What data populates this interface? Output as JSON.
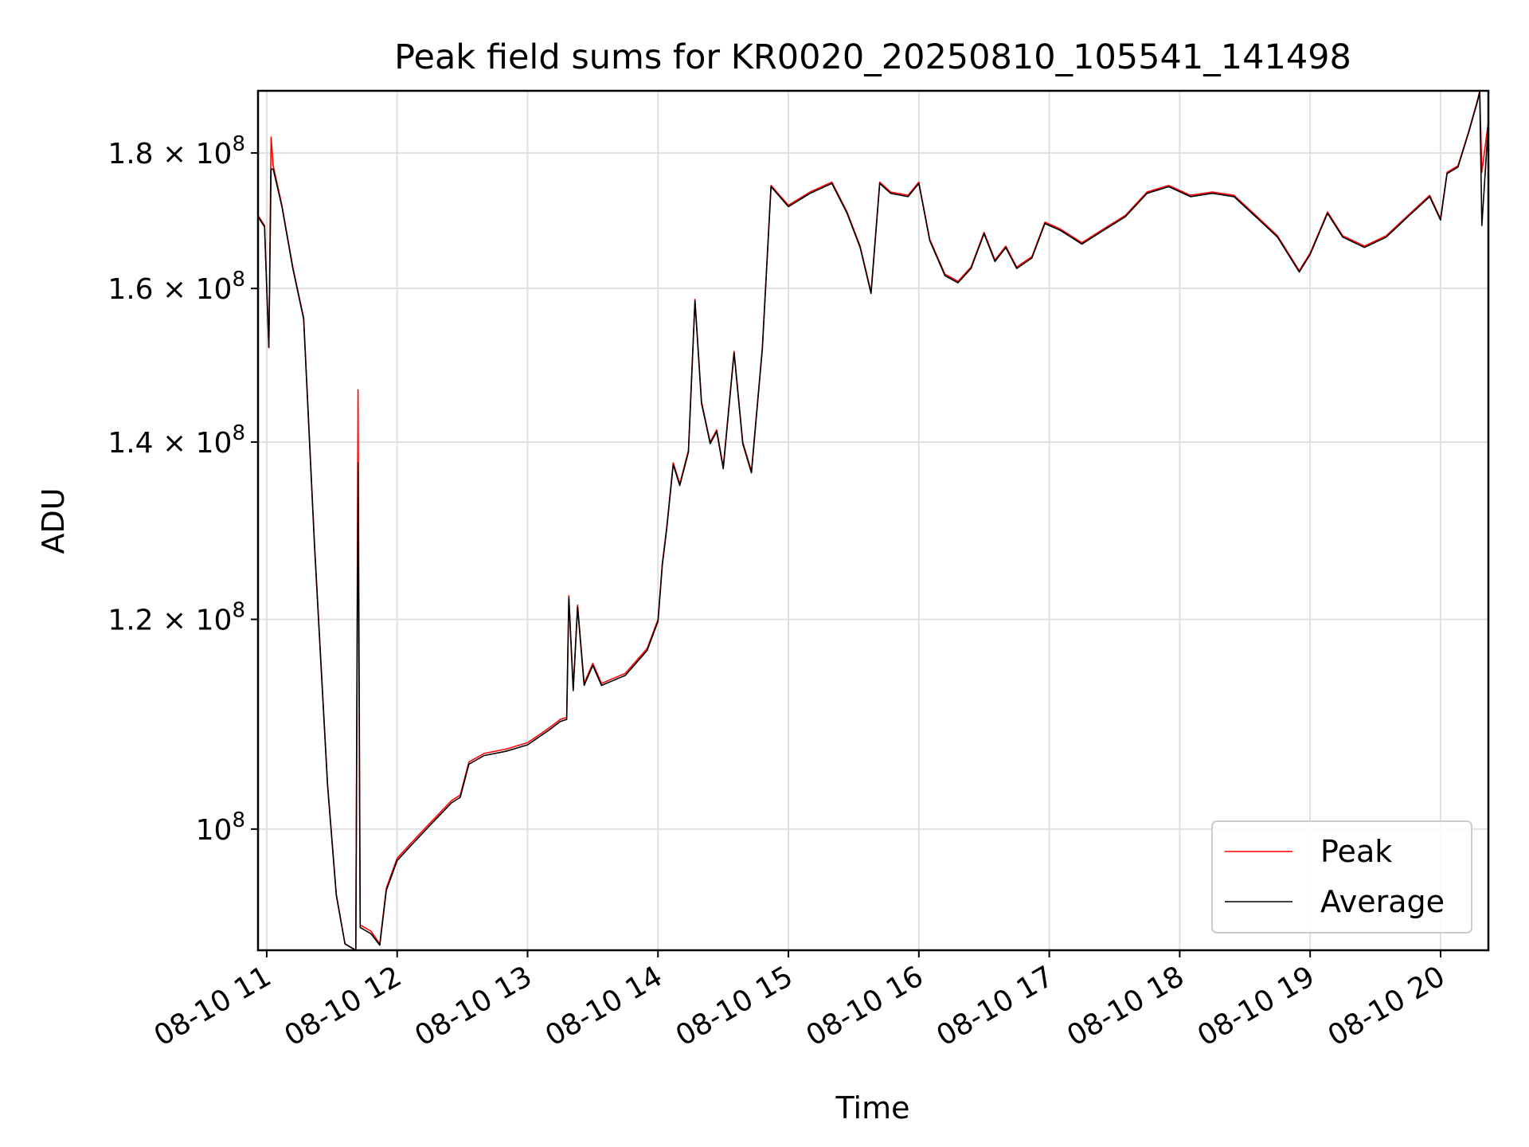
{
  "chart_data": {
    "type": "line",
    "title": "Peak field sums for KR0020_20250810_105541_141498",
    "xlabel": "Time",
    "ylabel": "ADU",
    "x_unit": "hours",
    "xlim": [
      "2025-08-10 10:56",
      "2025-08-10 20:22"
    ],
    "ylim": [
      90000000,
      190000000
    ],
    "yscale": "log",
    "grid": true,
    "legend": "lower right",
    "x_ticks": [
      {
        "value": "2025-08-10 11:00",
        "label": "08-10 11"
      },
      {
        "value": "2025-08-10 12:00",
        "label": "08-10 12"
      },
      {
        "value": "2025-08-10 13:00",
        "label": "08-10 13"
      },
      {
        "value": "2025-08-10 14:00",
        "label": "08-10 14"
      },
      {
        "value": "2025-08-10 15:00",
        "label": "08-10 15"
      },
      {
        "value": "2025-08-10 16:00",
        "label": "08-10 16"
      },
      {
        "value": "2025-08-10 17:00",
        "label": "08-10 17"
      },
      {
        "value": "2025-08-10 18:00",
        "label": "08-10 18"
      },
      {
        "value": "2025-08-10 19:00",
        "label": "08-10 19"
      },
      {
        "value": "2025-08-10 20:00",
        "label": "08-10 20"
      }
    ],
    "y_ticks": [
      {
        "value": 100000000,
        "mant": "",
        "exp": "8"
      },
      {
        "value": 120000000,
        "mant": "1.2",
        "exp": "8"
      },
      {
        "value": 140000000,
        "mant": "1.4",
        "exp": "8"
      },
      {
        "value": 160000000,
        "mant": "1.6",
        "exp": "8"
      },
      {
        "value": 180000000,
        "mant": "1.8",
        "exp": "8"
      }
    ],
    "series": [
      {
        "name": "Peak",
        "color": "#ff0000",
        "points": [
          [
            "2025-08-10 10:56",
            170500000
          ],
          [
            "2025-08-10 10:59",
            169000000
          ],
          [
            "2025-08-10 11:01",
            152000000
          ],
          [
            "2025-08-10 11:02",
            182500000
          ],
          [
            "2025-08-10 11:03",
            178000000
          ],
          [
            "2025-08-10 11:07",
            172000000
          ],
          [
            "2025-08-10 11:12",
            163000000
          ],
          [
            "2025-08-10 11:17",
            156000000
          ],
          [
            "2025-08-10 11:22",
            128000000
          ],
          [
            "2025-08-10 11:28",
            104000000
          ],
          [
            "2025-08-10 11:32",
            94500000
          ],
          [
            "2025-08-10 11:36",
            90500000
          ],
          [
            "2025-08-10 11:41",
            90000000
          ],
          [
            "2025-08-10 11:42",
            146500000
          ],
          [
            "2025-08-10 11:43",
            92000000
          ],
          [
            "2025-08-10 11:48",
            91500000
          ],
          [
            "2025-08-10 11:52",
            90500000
          ],
          [
            "2025-08-10 11:55",
            95000000
          ],
          [
            "2025-08-10 12:00",
            97500000
          ],
          [
            "2025-08-10 12:05",
            98500000
          ],
          [
            "2025-08-10 12:10",
            99500000
          ],
          [
            "2025-08-10 12:15",
            100500000
          ],
          [
            "2025-08-10 12:20",
            101500000
          ],
          [
            "2025-08-10 12:25",
            102500000
          ],
          [
            "2025-08-10 12:29",
            103000000
          ],
          [
            "2025-08-10 12:33",
            106000000
          ],
          [
            "2025-08-10 12:40",
            106800000
          ],
          [
            "2025-08-10 12:50",
            107200000
          ],
          [
            "2025-08-10 13:00",
            107800000
          ],
          [
            "2025-08-10 13:05",
            108500000
          ],
          [
            "2025-08-10 13:10",
            109200000
          ],
          [
            "2025-08-10 13:15",
            110000000
          ],
          [
            "2025-08-10 13:18",
            110200000
          ],
          [
            "2025-08-10 13:19",
            122500000
          ],
          [
            "2025-08-10 13:21",
            113000000
          ],
          [
            "2025-08-10 13:23",
            121500000
          ],
          [
            "2025-08-10 13:26",
            113500000
          ],
          [
            "2025-08-10 13:30",
            115500000
          ],
          [
            "2025-08-10 13:34",
            113500000
          ],
          [
            "2025-08-10 13:45",
            114500000
          ],
          [
            "2025-08-10 13:55",
            117000000
          ],
          [
            "2025-08-10 14:00",
            120000000
          ],
          [
            "2025-08-10 14:02",
            126000000
          ],
          [
            "2025-08-10 14:04",
            130000000
          ],
          [
            "2025-08-10 14:07",
            137500000
          ],
          [
            "2025-08-10 14:10",
            135000000
          ],
          [
            "2025-08-10 14:14",
            139000000
          ],
          [
            "2025-08-10 14:17",
            158500000
          ],
          [
            "2025-08-10 14:20",
            145000000
          ],
          [
            "2025-08-10 14:24",
            140000000
          ],
          [
            "2025-08-10 14:27",
            141500000
          ],
          [
            "2025-08-10 14:30",
            137000000
          ],
          [
            "2025-08-10 14:35",
            151500000
          ],
          [
            "2025-08-10 14:39",
            140000000
          ],
          [
            "2025-08-10 14:43",
            136500000
          ],
          [
            "2025-08-10 14:48",
            152000000
          ],
          [
            "2025-08-10 14:52",
            175000000
          ],
          [
            "2025-08-10 15:00",
            172000000
          ],
          [
            "2025-08-10 15:10",
            174000000
          ],
          [
            "2025-08-10 15:20",
            175500000
          ],
          [
            "2025-08-10 15:27",
            171000000
          ],
          [
            "2025-08-10 15:33",
            166000000
          ],
          [
            "2025-08-10 15:38",
            159500000
          ],
          [
            "2025-08-10 15:42",
            175500000
          ],
          [
            "2025-08-10 15:47",
            174000000
          ],
          [
            "2025-08-10 15:55",
            173500000
          ],
          [
            "2025-08-10 16:00",
            175500000
          ],
          [
            "2025-08-10 16:05",
            167000000
          ],
          [
            "2025-08-10 16:12",
            162000000
          ],
          [
            "2025-08-10 16:18",
            161000000
          ],
          [
            "2025-08-10 16:24",
            163000000
          ],
          [
            "2025-08-10 16:30",
            168000000
          ],
          [
            "2025-08-10 16:35",
            164000000
          ],
          [
            "2025-08-10 16:40",
            166000000
          ],
          [
            "2025-08-10 16:45",
            163000000
          ],
          [
            "2025-08-10 16:52",
            164500000
          ],
          [
            "2025-08-10 16:58",
            169500000
          ],
          [
            "2025-08-10 17:05",
            168500000
          ],
          [
            "2025-08-10 17:15",
            166500000
          ],
          [
            "2025-08-10 17:25",
            168500000
          ],
          [
            "2025-08-10 17:35",
            170500000
          ],
          [
            "2025-08-10 17:45",
            174000000
          ],
          [
            "2025-08-10 17:55",
            175000000
          ],
          [
            "2025-08-10 18:05",
            173500000
          ],
          [
            "2025-08-10 18:15",
            174000000
          ],
          [
            "2025-08-10 18:25",
            173500000
          ],
          [
            "2025-08-10 18:35",
            170500000
          ],
          [
            "2025-08-10 18:45",
            167500000
          ],
          [
            "2025-08-10 18:55",
            162500000
          ],
          [
            "2025-08-10 19:00",
            165000000
          ],
          [
            "2025-08-10 19:08",
            171000000
          ],
          [
            "2025-08-10 19:15",
            167500000
          ],
          [
            "2025-08-10 19:25",
            166000000
          ],
          [
            "2025-08-10 19:35",
            167500000
          ],
          [
            "2025-08-10 19:45",
            170500000
          ],
          [
            "2025-08-10 19:55",
            173500000
          ],
          [
            "2025-08-10 20:00",
            170000000
          ],
          [
            "2025-08-10 20:03",
            177000000
          ],
          [
            "2025-08-10 20:08",
            178000000
          ],
          [
            "2025-08-10 20:13",
            183500000
          ],
          [
            "2025-08-10 20:17",
            188500000
          ],
          [
            "2025-08-10 20:18",
            190000000
          ],
          [
            "2025-08-10 20:19",
            177000000
          ],
          [
            "2025-08-10 20:22",
            185000000
          ]
        ]
      },
      {
        "name": "Average",
        "color": "#000000",
        "points": [
          [
            "2025-08-10 10:56",
            170300000
          ],
          [
            "2025-08-10 10:59",
            168800000
          ],
          [
            "2025-08-10 11:01",
            152000000
          ],
          [
            "2025-08-10 11:02",
            177500000
          ],
          [
            "2025-08-10 11:03",
            177500000
          ],
          [
            "2025-08-10 11:07",
            171800000
          ],
          [
            "2025-08-10 11:12",
            162800000
          ],
          [
            "2025-08-10 11:17",
            155800000
          ],
          [
            "2025-08-10 11:22",
            127800000
          ],
          [
            "2025-08-10 11:28",
            103900000
          ],
          [
            "2025-08-10 11:32",
            94400000
          ],
          [
            "2025-08-10 11:36",
            90500000
          ],
          [
            "2025-08-10 11:41",
            90000000
          ],
          [
            "2025-08-10 11:42",
            137500000
          ],
          [
            "2025-08-10 11:43",
            91800000
          ],
          [
            "2025-08-10 11:48",
            91300000
          ],
          [
            "2025-08-10 11:52",
            90400000
          ],
          [
            "2025-08-10 11:55",
            94800000
          ],
          [
            "2025-08-10 12:00",
            97300000
          ],
          [
            "2025-08-10 12:05",
            98300000
          ],
          [
            "2025-08-10 12:10",
            99300000
          ],
          [
            "2025-08-10 12:15",
            100300000
          ],
          [
            "2025-08-10 12:20",
            101300000
          ],
          [
            "2025-08-10 12:25",
            102300000
          ],
          [
            "2025-08-10 12:29",
            102800000
          ],
          [
            "2025-08-10 12:33",
            105800000
          ],
          [
            "2025-08-10 12:40",
            106600000
          ],
          [
            "2025-08-10 12:50",
            107000000
          ],
          [
            "2025-08-10 13:00",
            107600000
          ],
          [
            "2025-08-10 13:05",
            108300000
          ],
          [
            "2025-08-10 13:10",
            109000000
          ],
          [
            "2025-08-10 13:15",
            109800000
          ],
          [
            "2025-08-10 13:18",
            110000000
          ],
          [
            "2025-08-10 13:19",
            122300000
          ],
          [
            "2025-08-10 13:21",
            112800000
          ],
          [
            "2025-08-10 13:23",
            121300000
          ],
          [
            "2025-08-10 13:26",
            113300000
          ],
          [
            "2025-08-10 13:30",
            115300000
          ],
          [
            "2025-08-10 13:34",
            113300000
          ],
          [
            "2025-08-10 13:45",
            114300000
          ],
          [
            "2025-08-10 13:55",
            116800000
          ],
          [
            "2025-08-10 14:00",
            119800000
          ],
          [
            "2025-08-10 14:02",
            125800000
          ],
          [
            "2025-08-10 14:04",
            129800000
          ],
          [
            "2025-08-10 14:07",
            137300000
          ],
          [
            "2025-08-10 14:10",
            134800000
          ],
          [
            "2025-08-10 14:14",
            138800000
          ],
          [
            "2025-08-10 14:17",
            158300000
          ],
          [
            "2025-08-10 14:20",
            144800000
          ],
          [
            "2025-08-10 14:24",
            139800000
          ],
          [
            "2025-08-10 14:27",
            141300000
          ],
          [
            "2025-08-10 14:30",
            136800000
          ],
          [
            "2025-08-10 14:35",
            151300000
          ],
          [
            "2025-08-10 14:39",
            139800000
          ],
          [
            "2025-08-10 14:43",
            136300000
          ],
          [
            "2025-08-10 14:48",
            151800000
          ],
          [
            "2025-08-10 14:52",
            174800000
          ],
          [
            "2025-08-10 15:00",
            171800000
          ],
          [
            "2025-08-10 15:10",
            173800000
          ],
          [
            "2025-08-10 15:20",
            175300000
          ],
          [
            "2025-08-10 15:27",
            170800000
          ],
          [
            "2025-08-10 15:33",
            165800000
          ],
          [
            "2025-08-10 15:38",
            159300000
          ],
          [
            "2025-08-10 15:42",
            175300000
          ],
          [
            "2025-08-10 15:47",
            173800000
          ],
          [
            "2025-08-10 15:55",
            173300000
          ],
          [
            "2025-08-10 16:00",
            175300000
          ],
          [
            "2025-08-10 16:05",
            166800000
          ],
          [
            "2025-08-10 16:12",
            161800000
          ],
          [
            "2025-08-10 16:18",
            160800000
          ],
          [
            "2025-08-10 16:24",
            162800000
          ],
          [
            "2025-08-10 16:30",
            167800000
          ],
          [
            "2025-08-10 16:35",
            163800000
          ],
          [
            "2025-08-10 16:40",
            165800000
          ],
          [
            "2025-08-10 16:45",
            162800000
          ],
          [
            "2025-08-10 16:52",
            164300000
          ],
          [
            "2025-08-10 16:58",
            169300000
          ],
          [
            "2025-08-10 17:05",
            168300000
          ],
          [
            "2025-08-10 17:15",
            166300000
          ],
          [
            "2025-08-10 17:25",
            168300000
          ],
          [
            "2025-08-10 17:35",
            170300000
          ],
          [
            "2025-08-10 17:45",
            173800000
          ],
          [
            "2025-08-10 17:55",
            174800000
          ],
          [
            "2025-08-10 18:05",
            173300000
          ],
          [
            "2025-08-10 18:15",
            173800000
          ],
          [
            "2025-08-10 18:25",
            173300000
          ],
          [
            "2025-08-10 18:35",
            170300000
          ],
          [
            "2025-08-10 18:45",
            167300000
          ],
          [
            "2025-08-10 18:55",
            162300000
          ],
          [
            "2025-08-10 19:00",
            164800000
          ],
          [
            "2025-08-10 19:08",
            170800000
          ],
          [
            "2025-08-10 19:15",
            167300000
          ],
          [
            "2025-08-10 19:25",
            165800000
          ],
          [
            "2025-08-10 19:35",
            167300000
          ],
          [
            "2025-08-10 19:45",
            170300000
          ],
          [
            "2025-08-10 19:55",
            173300000
          ],
          [
            "2025-08-10 20:00",
            169800000
          ],
          [
            "2025-08-10 20:03",
            176800000
          ],
          [
            "2025-08-10 20:08",
            177800000
          ],
          [
            "2025-08-10 20:13",
            183300000
          ],
          [
            "2025-08-10 20:17",
            188300000
          ],
          [
            "2025-08-10 20:18",
            189800000
          ],
          [
            "2025-08-10 20:19",
            169000000
          ],
          [
            "2025-08-10 20:22",
            184800000
          ]
        ]
      }
    ]
  }
}
